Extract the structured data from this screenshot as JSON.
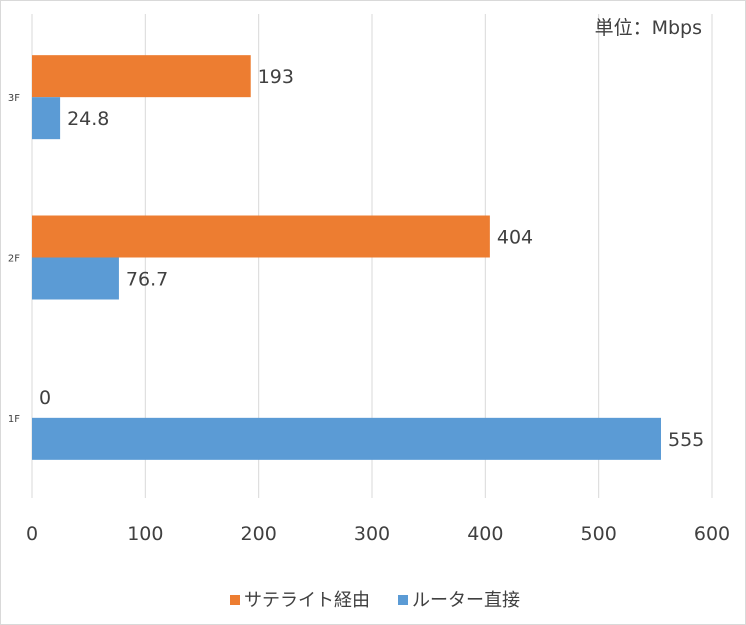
{
  "chart_data": {
    "type": "bar",
    "orientation": "horizontal",
    "title": "",
    "annotation": "単位：Mbps",
    "categories": [
      "3F",
      "2F",
      "1F"
    ],
    "series": [
      {
        "name": "サテライト経由",
        "color": "#ED7D31",
        "values": [
          193,
          404,
          0
        ],
        "labels": [
          "193",
          "404",
          "0"
        ]
      },
      {
        "name": "ルーター直接",
        "color": "#5B9BD5",
        "values": [
          24.8,
          76.7,
          555
        ],
        "labels": [
          "24.8",
          "76.7",
          "555"
        ]
      }
    ],
    "xlim": [
      0,
      600
    ],
    "xticks": [
      "0",
      "100",
      "200",
      "300",
      "400",
      "500",
      "600"
    ],
    "grid": true,
    "legend": "bottom",
    "xlabel": "",
    "ylabel": ""
  }
}
